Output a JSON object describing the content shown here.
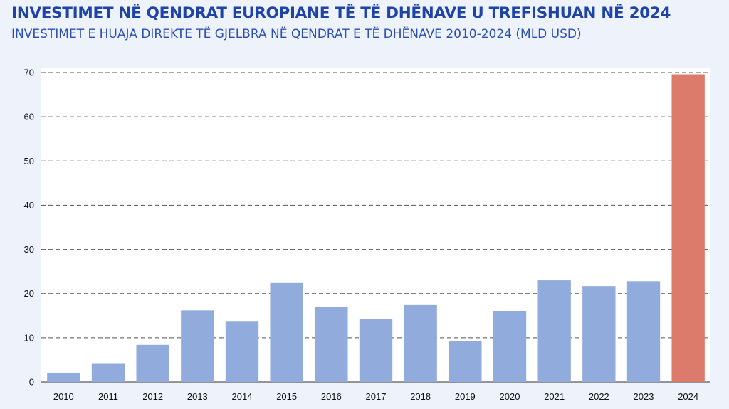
{
  "chart_data": {
    "type": "bar",
    "title": "INVESTIMET NË QENDRAT EUROPIANE TË TË DHËNAVE U TREFISHUAN NË 2024",
    "subtitle": "INVESTIMET E HUAJA DIREKTE TË GJELBRA NË QENDRAT E TË DHËNAVE 2010-2024 (MLD USD)",
    "xlabel": "",
    "ylabel": "",
    "categories": [
      "2010",
      "2011",
      "2012",
      "2013",
      "2014",
      "2015",
      "2016",
      "2017",
      "2018",
      "2019",
      "2020",
      "2021",
      "2022",
      "2023",
      "2024"
    ],
    "values": [
      2.1,
      4.1,
      8.4,
      16.2,
      13.8,
      22.4,
      17.0,
      14.3,
      17.4,
      9.2,
      16.1,
      23.0,
      21.7,
      22.8,
      69.6
    ],
    "ylim": [
      0,
      70
    ],
    "yticks": [
      0,
      10,
      20,
      30,
      40,
      50,
      60,
      70
    ],
    "grid": true,
    "colors": {
      "bar": "#91acdc",
      "highlight": "#dc7b6b",
      "grid": "#555555",
      "plot_bg": "#ffffff"
    },
    "highlight_category": "2024"
  }
}
